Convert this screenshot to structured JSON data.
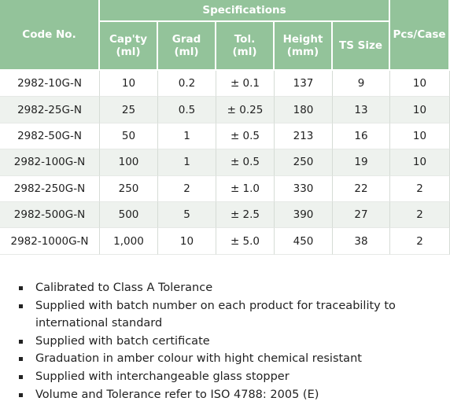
{
  "table": {
    "group_header": "Specifications",
    "headers": [
      "Code No.",
      "Cap'ty\n(ml)",
      "Grad\n(ml)",
      "Tol.\n(ml)",
      "Height\n(mm)",
      "TS Size",
      "Pcs/Case"
    ],
    "rows": [
      [
        "2982-10G-N",
        "10",
        "0.2",
        "± 0.1",
        "137",
        "9",
        "10"
      ],
      [
        "2982-25G-N",
        "25",
        "0.5",
        "± 0.25",
        "180",
        "13",
        "10"
      ],
      [
        "2982-50G-N",
        "50",
        "1",
        "± 0.5",
        "213",
        "16",
        "10"
      ],
      [
        "2982-100G-N",
        "100",
        "1",
        "± 0.5",
        "250",
        "19",
        "10"
      ],
      [
        "2982-250G-N",
        "250",
        "2",
        "± 1.0",
        "330",
        "22",
        "2"
      ],
      [
        "2982-500G-N",
        "500",
        "5",
        "± 2.5",
        "390",
        "27",
        "2"
      ],
      [
        "2982-1000G-N",
        "1,000",
        "10",
        "± 5.0",
        "450",
        "38",
        "2"
      ]
    ]
  },
  "features": [
    "Calibrated to Class A Tolerance",
    "Supplied with batch number on each product for traceability to international standard",
    "Supplied with batch certificate",
    "Graduation in amber colour with hight chemical resistant",
    "Supplied with interchangeable glass stopper",
    "Volume and Tolerance refer to ISO 4788: 2005 (E)"
  ]
}
